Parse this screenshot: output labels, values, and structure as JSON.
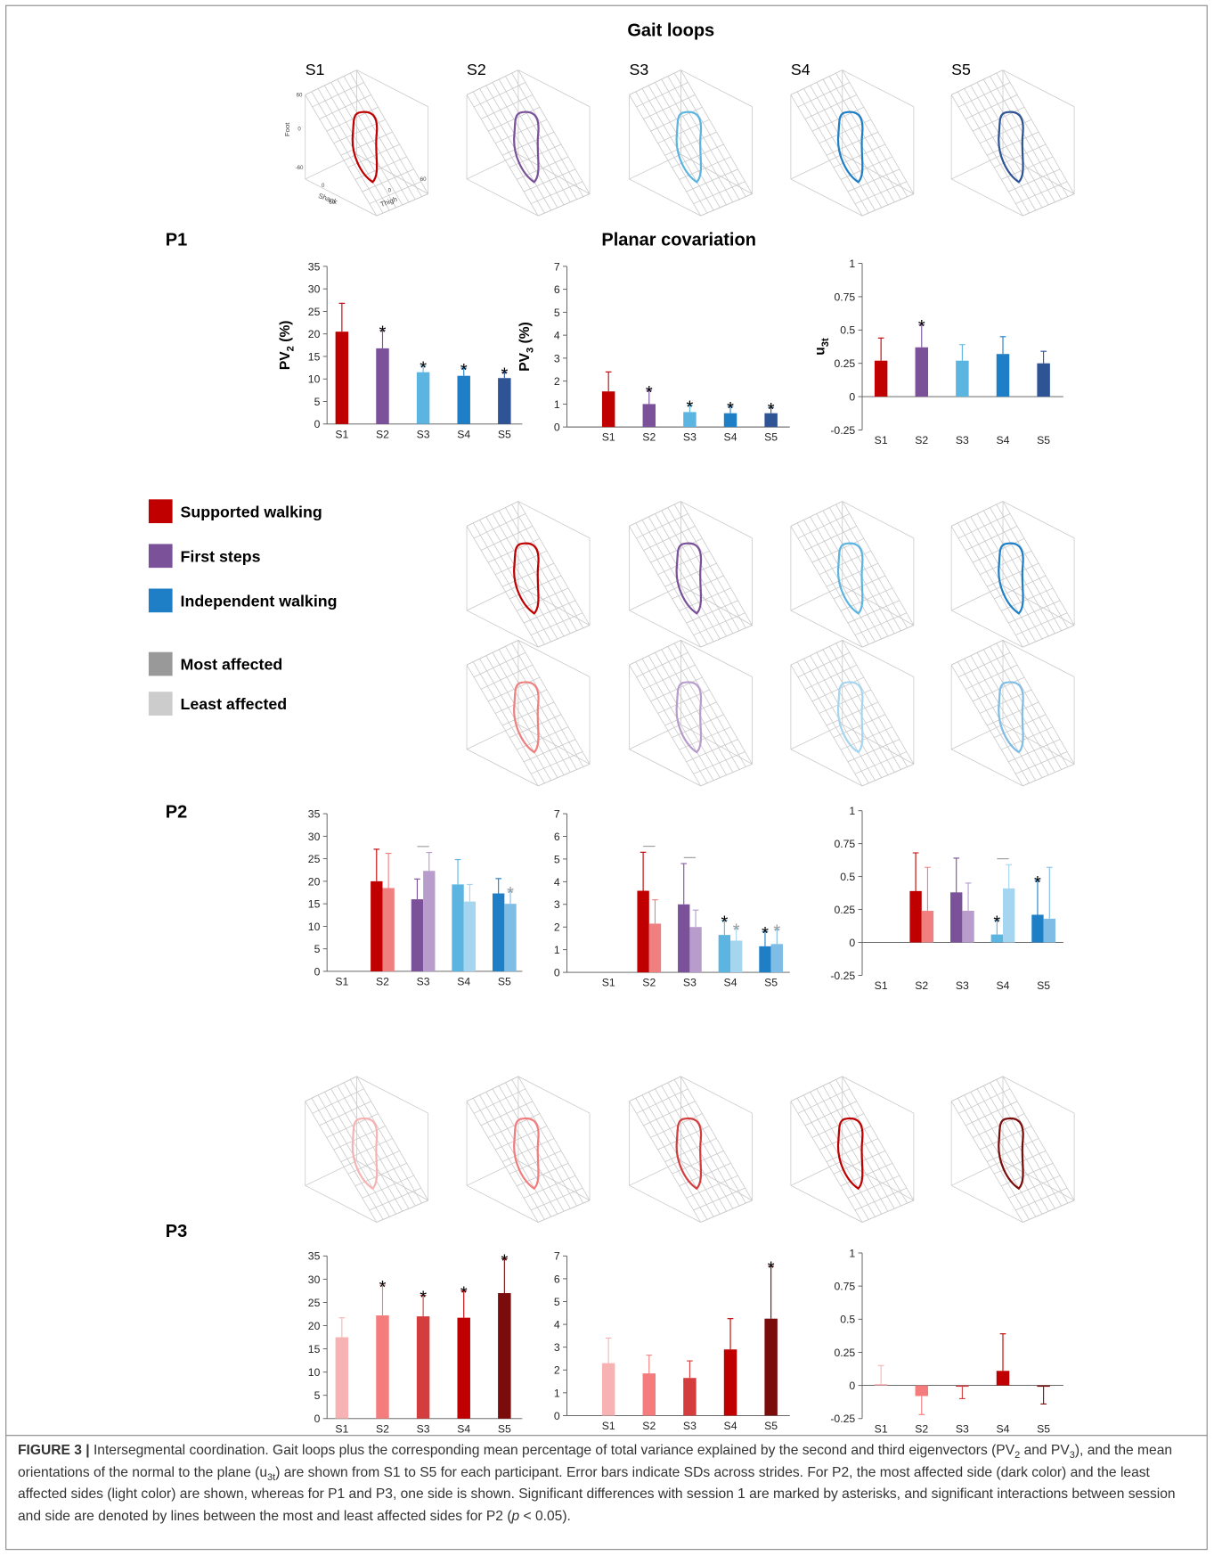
{
  "title": "Gait loops",
  "subtitle": "Planar covariation",
  "loop_labels": [
    "S1",
    "S2",
    "S3",
    "S4",
    "S5"
  ],
  "axes_3d": {
    "foot": {
      "label": "Foot",
      "ticks": [
        60,
        0,
        -60
      ]
    },
    "shank": {
      "label": "Shank",
      "ticks": [
        0,
        60
      ]
    },
    "thigh": {
      "label": "Thigh",
      "ticks": [
        0,
        60
      ]
    }
  },
  "loop_rows": [
    {
      "colors": [
        "#c00000",
        "#7b529a",
        "#5bb5e0",
        "#1f7fc6",
        "#2f5496"
      ]
    },
    {
      "colors": [
        null,
        "#c00000",
        "#7b529a",
        "#5bb5e0",
        "#1f7fc6"
      ]
    },
    {
      "colors": [
        null,
        "#f08080",
        "#b89ccc",
        "#a6d5ef",
        "#7fbde6"
      ]
    },
    {
      "colors": [
        "#f7b3b3",
        "#f47c7c",
        "#d43d3d",
        "#c00000",
        "#7b0c0c"
      ]
    }
  ],
  "participants": [
    "P1",
    "P2",
    "P3"
  ],
  "legend": [
    {
      "label": "Supported walking",
      "color": "#c00000"
    },
    {
      "label": "First steps",
      "color": "#7b529a"
    },
    {
      "label": "Independent walking",
      "color": "#1f7fc6"
    },
    {
      "label": "Most affected",
      "color": "#999999"
    },
    {
      "label": "Least affected",
      "color": "#cccccc"
    }
  ],
  "chart_data": [
    {
      "type": "bar",
      "ylabel": {
        "main": "PV",
        "sub": "2",
        "unit": "(%)"
      },
      "categories": [
        "S1",
        "S2",
        "S3",
        "S4",
        "S5"
      ],
      "ylim": [
        0,
        35
      ],
      "yticks": [
        0,
        5,
        10,
        15,
        20,
        25,
        30,
        35
      ],
      "series": [
        {
          "values": [
            20.5,
            16.8,
            11.5,
            10.7,
            10.2
          ],
          "errors": [
            6.3,
            4,
            1.4,
            1.7,
            1.3
          ],
          "colors": [
            "#c00000",
            "#7b529a",
            "#5bb5e0",
            "#1f7fc6",
            "#2f5496"
          ],
          "asterisks": [
            null,
            "*",
            "*",
            "*",
            "*"
          ],
          "asterisk_color": "#000000"
        }
      ]
    },
    {
      "type": "bar",
      "ylabel": {
        "main": "PV",
        "sub": "3",
        "unit": "(%)"
      },
      "categories": [
        "S1",
        "S2",
        "S3",
        "S4",
        "S5"
      ],
      "ylim": [
        0,
        7
      ],
      "yticks": [
        0,
        1,
        2,
        3,
        4,
        5,
        6,
        7
      ],
      "series": [
        {
          "values": [
            1.55,
            1.0,
            0.65,
            0.6,
            0.6
          ],
          "errors": [
            0.85,
            0.6,
            0.3,
            0.3,
            0.25
          ],
          "colors": [
            "#c00000",
            "#7b529a",
            "#5bb5e0",
            "#1f7fc6",
            "#2f5496"
          ],
          "asterisks": [
            null,
            "*",
            "*",
            "*",
            "*"
          ],
          "asterisk_color": "#000000"
        }
      ]
    },
    {
      "type": "bar",
      "ylabel": {
        "main": "u",
        "sub": "3t"
      },
      "categories": [
        "S1",
        "S2",
        "S3",
        "S4",
        "S5"
      ],
      "ylim": [
        -0.25,
        1
      ],
      "yticks": [
        -0.25,
        0,
        0.25,
        0.5,
        0.75,
        1
      ],
      "series": [
        {
          "values": [
            0.27,
            0.37,
            0.27,
            0.32,
            0.25
          ],
          "errors": [
            0.17,
            0.17,
            0.12,
            0.13,
            0.09
          ],
          "colors": [
            "#c00000",
            "#7b529a",
            "#5bb5e0",
            "#1f7fc6",
            "#2f5496"
          ],
          "asterisks": [
            null,
            "*",
            null,
            null,
            null
          ],
          "asterisk_color": "#000000"
        }
      ]
    },
    {
      "type": "bar",
      "categories": [
        "S1",
        "S2",
        "S3",
        "S4",
        "S5"
      ],
      "ylim": [
        0,
        35
      ],
      "yticks": [
        0,
        5,
        10,
        15,
        20,
        25,
        30,
        35
      ],
      "interactions": [
        false,
        false,
        true,
        false,
        false
      ],
      "series": [
        {
          "values": [
            null,
            20,
            16,
            19.3,
            17.3
          ],
          "errors": [
            null,
            7.1,
            4.5,
            5.5,
            3.3
          ],
          "colors": [
            null,
            "#c00000",
            "#7b529a",
            "#5bb5e0",
            "#1f7fc6"
          ],
          "asterisks": [
            null,
            null,
            null,
            null,
            null
          ],
          "asterisk_color": "#000000"
        },
        {
          "values": [
            null,
            18.5,
            22.3,
            15.5,
            15
          ],
          "errors": [
            null,
            7.7,
            4.1,
            3.8,
            2.8
          ],
          "colors": [
            null,
            "#f08080",
            "#b89ccc",
            "#a6d5ef",
            "#7fbde6"
          ],
          "asterisks": [
            null,
            null,
            null,
            null,
            "*"
          ],
          "asterisk_color": "#999999"
        }
      ]
    },
    {
      "type": "bar",
      "categories": [
        "S1",
        "S2",
        "S3",
        "S4",
        "S5"
      ],
      "ylim": [
        0,
        7
      ],
      "yticks": [
        0,
        1,
        2,
        3,
        4,
        5,
        6,
        7
      ],
      "interactions": [
        false,
        true,
        true,
        false,
        false
      ],
      "series": [
        {
          "values": [
            null,
            3.6,
            3.0,
            1.65,
            1.15
          ],
          "errors": [
            null,
            1.7,
            1.8,
            0.65,
            0.65
          ],
          "colors": [
            null,
            "#c00000",
            "#7b529a",
            "#5bb5e0",
            "#1f7fc6"
          ],
          "asterisks": [
            null,
            null,
            null,
            "*",
            "*"
          ],
          "asterisk_color": "#000000"
        },
        {
          "values": [
            null,
            2.15,
            2.0,
            1.4,
            1.25
          ],
          "errors": [
            null,
            1.05,
            0.75,
            0.55,
            0.65
          ],
          "colors": [
            null,
            "#f08080",
            "#b89ccc",
            "#a6d5ef",
            "#7fbde6"
          ],
          "asterisks": [
            null,
            null,
            null,
            "*",
            "*"
          ],
          "asterisk_color": "#999999"
        }
      ]
    },
    {
      "type": "bar",
      "categories": [
        "S1",
        "S2",
        "S3",
        "S4",
        "S5"
      ],
      "ylim": [
        -0.25,
        1
      ],
      "yticks": [
        -0.25,
        0,
        0.25,
        0.5,
        0.75,
        1
      ],
      "interactions": [
        false,
        false,
        false,
        true,
        false
      ],
      "series": [
        {
          "values": [
            null,
            0.39,
            0.38,
            0.06,
            0.21
          ],
          "errors": [
            null,
            0.29,
            0.26,
            0.11,
            0.26
          ],
          "colors": [
            null,
            "#c00000",
            "#7b529a",
            "#5bb5e0",
            "#1f7fc6"
          ],
          "asterisks": [
            null,
            null,
            null,
            "*",
            "*"
          ],
          "asterisk_color": "#000000"
        },
        {
          "values": [
            null,
            0.24,
            0.24,
            0.41,
            0.18
          ],
          "errors": [
            null,
            0.33,
            0.21,
            0.18,
            0.39
          ],
          "colors": [
            null,
            "#f08080",
            "#b89ccc",
            "#a6d5ef",
            "#7fbde6"
          ],
          "asterisks": [
            null,
            null,
            null,
            null,
            null
          ],
          "asterisk_color": "#999999"
        }
      ]
    },
    {
      "type": "bar",
      "categories": [
        "S1",
        "S2",
        "S3",
        "S4",
        "S5"
      ],
      "ylim": [
        0,
        35
      ],
      "yticks": [
        0,
        5,
        10,
        15,
        20,
        25,
        30,
        35
      ],
      "series": [
        {
          "values": [
            17.5,
            22.2,
            22,
            21.7,
            27
          ],
          "errors": [
            4.2,
            6.5,
            4.5,
            5.8,
            7.4
          ],
          "colors": [
            "#f7b3b3",
            "#f47c7c",
            "#d43d3d",
            "#c00000",
            "#7b0c0c"
          ],
          "asterisks": [
            null,
            "*",
            "*",
            "*",
            "*"
          ],
          "asterisk_color": "#000000"
        }
      ]
    },
    {
      "type": "bar",
      "categories": [
        "S1",
        "S2",
        "S3",
        "S4",
        "S5"
      ],
      "ylim": [
        0,
        7
      ],
      "yticks": [
        0,
        1,
        2,
        3,
        4,
        5,
        6,
        7
      ],
      "series": [
        {
          "values": [
            2.3,
            1.85,
            1.65,
            2.9,
            4.25
          ],
          "errors": [
            1.1,
            0.8,
            0.75,
            1.35,
            2.3
          ],
          "colors": [
            "#f7b3b3",
            "#f47c7c",
            "#d43d3d",
            "#c00000",
            "#7b0c0c"
          ],
          "asterisks": [
            null,
            null,
            null,
            null,
            "*"
          ],
          "asterisk_color": "#000000"
        }
      ]
    },
    {
      "type": "bar",
      "categories": [
        "S1",
        "S2",
        "S3",
        "S4",
        "S5"
      ],
      "ylim": [
        -0.25,
        1
      ],
      "yticks": [
        -0.25,
        0,
        0.25,
        0.5,
        0.75,
        1
      ],
      "series": [
        {
          "values": [
            0.01,
            -0.08,
            -0.01,
            0.11,
            -0.01
          ],
          "errors": [
            0.14,
            0.14,
            0.09,
            0.28,
            0.13
          ],
          "colors": [
            "#f7b3b3",
            "#f47c7c",
            "#d43d3d",
            "#c00000",
            "#7b0c0c"
          ],
          "asterisks": [
            null,
            null,
            null,
            null,
            null
          ],
          "asterisk_color": "#000000"
        }
      ]
    }
  ],
  "caption": {
    "label": "FIGURE 3 |",
    "runs": [
      {
        "text": " Intersegmental coordination. Gait loops plus the corresponding mean percentage of total variance explained by the second and third eigenvectors (PV"
      },
      {
        "sub": "2"
      },
      {
        "text": " and PV"
      },
      {
        "sub": "3"
      },
      {
        "text": "), and the mean orientations of the normal to the plane (u"
      },
      {
        "sub": "3t"
      },
      {
        "text": ") are shown from S1 to S5 for each participant. Error bars indicate SDs across strides. For P2, the most affected side (dark color) and the least affected sides (light color) are shown, whereas for P1 and P3, one side is shown. Significant differences with session 1 are marked by asterisks, and significant interactions between session and side are denoted by lines between the most and least affected sides for P2 ("
      },
      {
        "italic": "p"
      },
      {
        "text": " < 0.05)."
      }
    ]
  }
}
